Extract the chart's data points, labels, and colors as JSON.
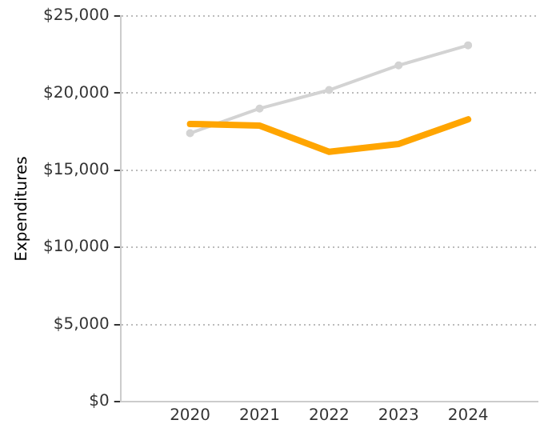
{
  "chart_data": {
    "type": "line",
    "ylabel": "Expenditures",
    "x": [
      2020,
      2021,
      2022,
      2023,
      2024
    ],
    "xlim": [
      2019,
      2025
    ],
    "xticks": [
      2020,
      2021,
      2022,
      2023,
      2024
    ],
    "ylim": [
      0,
      25000
    ],
    "yticks": [
      {
        "value": 0,
        "label": "$0"
      },
      {
        "value": 5000,
        "label": "$5,000"
      },
      {
        "value": 10000,
        "label": "$10,000"
      },
      {
        "value": 15000,
        "label": "$15,000"
      },
      {
        "value": 20000,
        "label": "$20,000"
      },
      {
        "value": 25000,
        "label": "$25,000"
      }
    ],
    "grid": "y",
    "legend": false,
    "series": [
      {
        "color": "#d3d3d3",
        "marker": "circle",
        "values": [
          17400,
          19000,
          20200,
          21800,
          23100
        ]
      },
      {
        "color": "#ffa500",
        "marker": "none",
        "values": [
          18000,
          17900,
          16200,
          16700,
          18300
        ]
      }
    ]
  }
}
